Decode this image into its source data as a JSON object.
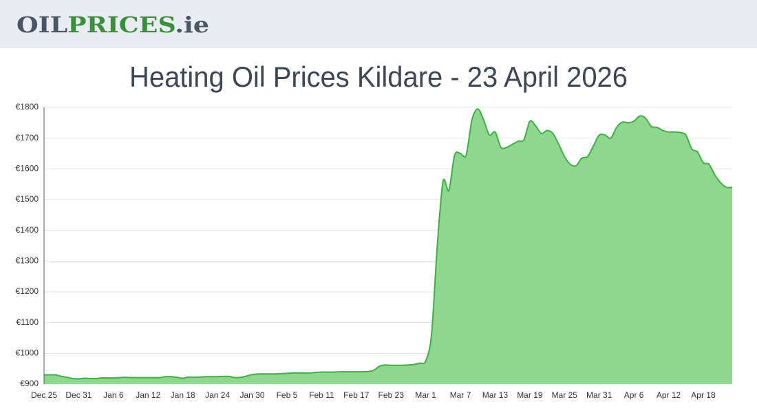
{
  "header": {
    "logo": [
      "OIL",
      "PRICES",
      ".ie"
    ]
  },
  "chart_data": {
    "type": "area",
    "title": "Heating Oil Prices Kildare - 23 April 2026",
    "color": "#3fae45",
    "fill": "#8fd68f",
    "grid": true,
    "ylim": [
      900,
      1800
    ],
    "yticks": [
      {
        "value": 900,
        "label": "€900"
      },
      {
        "value": 1000,
        "label": "€1000"
      },
      {
        "value": 1100,
        "label": "€1100"
      },
      {
        "value": 1200,
        "label": "€1200"
      },
      {
        "value": 1300,
        "label": "€1300"
      },
      {
        "value": 1400,
        "label": "€1400"
      },
      {
        "value": 1500,
        "label": "€1500"
      },
      {
        "value": 1600,
        "label": "€1600"
      },
      {
        "value": 1700,
        "label": "€1700"
      },
      {
        "value": 1800,
        "label": "€1800"
      }
    ],
    "categories": [
      "Dec 25",
      null,
      null,
      null,
      null,
      null,
      "Dec 31",
      null,
      null,
      null,
      null,
      null,
      "Jan 6",
      null,
      null,
      null,
      null,
      null,
      "Jan 12",
      null,
      null,
      null,
      null,
      null,
      "Jan 18",
      null,
      null,
      null,
      null,
      null,
      "Jan 24",
      null,
      null,
      null,
      null,
      null,
      "Jan 30",
      null,
      null,
      null,
      null,
      null,
      "Feb 5",
      null,
      null,
      null,
      null,
      null,
      "Feb 11",
      null,
      null,
      null,
      null,
      null,
      "Feb 17",
      null,
      null,
      null,
      null,
      null,
      "Feb 23",
      null,
      null,
      null,
      null,
      null,
      "Mar 1",
      null,
      null,
      null,
      null,
      null,
      "Mar 7",
      null,
      null,
      null,
      null,
      null,
      "Mar 13",
      null,
      null,
      null,
      null,
      null,
      "Mar 19",
      null,
      null,
      null,
      null,
      null,
      "Mar 25",
      null,
      null,
      null,
      null,
      null,
      "Mar 31",
      null,
      null,
      null,
      null,
      null,
      "Apr 6",
      null,
      null,
      null,
      null,
      null,
      "Apr 12",
      null,
      null,
      null,
      null,
      null,
      "Apr 18",
      null,
      null,
      null,
      null,
      null
    ],
    "values": [
      930,
      930,
      930,
      925,
      922,
      918,
      917,
      919,
      918,
      918,
      920,
      920,
      920,
      921,
      922,
      921,
      921,
      921,
      921,
      921,
      921,
      924,
      924,
      922,
      919,
      923,
      922,
      923,
      924,
      924,
      924,
      925,
      925,
      921,
      922,
      926,
      931,
      933,
      933,
      933,
      933,
      934,
      935,
      936,
      936,
      936,
      936,
      938,
      939,
      939,
      939,
      940,
      940,
      940,
      940,
      940,
      941,
      945,
      958,
      962,
      961,
      961,
      961,
      962,
      964,
      968,
      975,
      1060,
      1350,
      1560,
      1530,
      1645,
      1650,
      1645,
      1760,
      1795,
      1760,
      1710,
      1720,
      1670,
      1670,
      1680,
      1690,
      1695,
      1755,
      1740,
      1715,
      1725,
      1715,
      1680,
      1640,
      1615,
      1610,
      1635,
      1640,
      1675,
      1710,
      1710,
      1700,
      1735,
      1752,
      1750,
      1755,
      1772,
      1765,
      1738,
      1735,
      1725,
      1720,
      1720,
      1718,
      1710,
      1665,
      1655,
      1620,
      1615,
      1580,
      1555,
      1540,
      1540
    ]
  }
}
